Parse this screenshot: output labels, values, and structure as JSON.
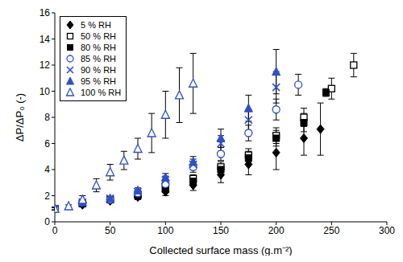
{
  "chart_data": {
    "type": "scatter",
    "x_label": "Collected surface mass (g.m⁻²)",
    "y_label": "ΔP/ΔP₀ (-)",
    "xlim": [
      0,
      300
    ],
    "xticks": [
      0,
      50,
      100,
      150,
      200,
      250,
      300
    ],
    "ylim": [
      0,
      16
    ],
    "yticks": [
      0,
      2,
      4,
      6,
      8,
      10,
      12,
      14,
      16
    ],
    "grid": false,
    "legend": "upper left",
    "series": [
      {
        "name": "5 % RH",
        "color": "#000000",
        "marker": "diamond",
        "x": [
          0,
          25,
          50,
          75,
          100,
          125,
          150,
          175,
          200,
          225,
          240
        ],
        "values": [
          1,
          1.3,
          1.6,
          1.9,
          2.3,
          2.8,
          3.6,
          4.4,
          5.3,
          6.4,
          7.1
        ],
        "errors": [
          0.1,
          0.1,
          0.1,
          0.2,
          0.3,
          0.4,
          0.6,
          0.8,
          1.3,
          1.3,
          2.0
        ]
      },
      {
        "name": "50 % RH",
        "color": "#000000",
        "marker": "square-open",
        "x": [
          0,
          25,
          50,
          75,
          100,
          125,
          150,
          175,
          200,
          225,
          250,
          270
        ],
        "values": [
          1,
          1.4,
          1.7,
          2.1,
          2.6,
          3.3,
          4.2,
          5.1,
          6.6,
          8.0,
          10.2,
          12.0
        ],
        "errors": [
          0.1,
          0.1,
          0.1,
          0.2,
          0.2,
          0.3,
          0.4,
          0.5,
          0.6,
          0.7,
          0.8,
          0.9
        ]
      },
      {
        "name": "80 % RH",
        "color": "#000000",
        "marker": "square",
        "x": [
          0,
          25,
          50,
          75,
          100,
          125,
          150,
          175,
          200,
          225,
          245
        ],
        "values": [
          1,
          1.4,
          1.7,
          2.0,
          2.5,
          3.1,
          4.0,
          4.9,
          6.4,
          7.6,
          9.9
        ],
        "errors": [
          0.1,
          0.1,
          0.1,
          0.2,
          0.2,
          0.3,
          0.4,
          0.5,
          0.6,
          0.7,
          0.3
        ]
      },
      {
        "name": "85 % RH",
        "color": "#2e4fc9",
        "marker": "circle-open",
        "x": [
          0,
          25,
          50,
          75,
          100,
          125,
          150,
          175,
          200,
          220
        ],
        "values": [
          1,
          1.5,
          1.7,
          2.2,
          2.9,
          4.2,
          5.2,
          6.8,
          8.6,
          10.5
        ],
        "errors": [
          0.1,
          0.1,
          0.1,
          0.2,
          0.3,
          0.4,
          0.5,
          0.6,
          0.8,
          0.8
        ]
      },
      {
        "name": "90 % RH",
        "color": "#2e4fc9",
        "marker": "x",
        "x": [
          0,
          25,
          50,
          75,
          100,
          125,
          150,
          175,
          200
        ],
        "values": [
          1,
          1.5,
          1.8,
          2.3,
          3.2,
          4.4,
          6.0,
          7.8,
          10.3
        ],
        "errors": [
          0.1,
          0.1,
          0.1,
          0.2,
          0.3,
          0.4,
          0.6,
          0.8,
          1.2
        ]
      },
      {
        "name": "95 % RH",
        "color": "#2e4fc9",
        "marker": "triangle",
        "x": [
          0,
          25,
          50,
          75,
          100,
          125,
          150,
          175,
          200
        ],
        "values": [
          1,
          1.5,
          1.8,
          2.4,
          3.4,
          4.6,
          6.4,
          8.7,
          11.5
        ],
        "errors": [
          0.1,
          0.1,
          0.1,
          0.2,
          0.3,
          0.4,
          0.7,
          1.0,
          1.7
        ]
      },
      {
        "name": "100 % RH",
        "color": "#2e4fc9",
        "marker": "triangle-open",
        "x": [
          0,
          12.5,
          25,
          37.5,
          50,
          62.5,
          75,
          87.5,
          100,
          112.5,
          125
        ],
        "values": [
          1,
          1.2,
          1.7,
          2.8,
          3.8,
          4.7,
          5.6,
          6.8,
          8.2,
          9.7,
          10.6
        ],
        "errors": [
          0.1,
          0.1,
          0.3,
          0.5,
          0.6,
          0.7,
          0.8,
          1.5,
          1.8,
          2.1,
          2.3
        ]
      }
    ]
  }
}
